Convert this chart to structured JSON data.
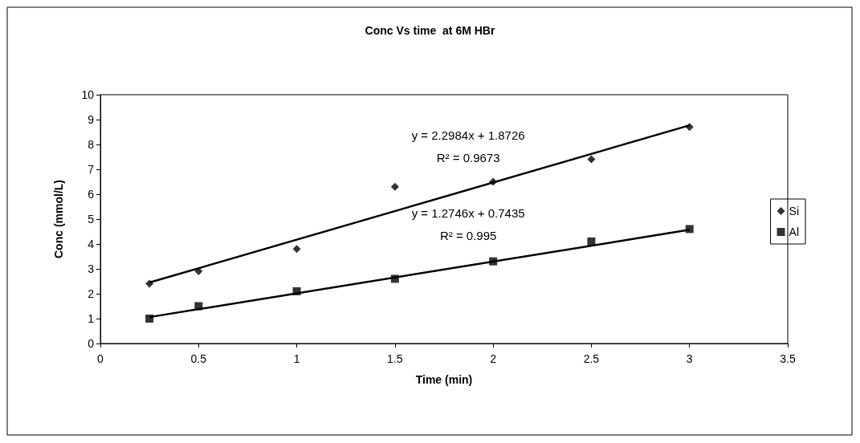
{
  "chart_data": {
    "type": "scatter",
    "title": "Conc Vs time  at 6M HBr",
    "xlabel": "Time (min)",
    "ylabel": "Conc (mmol/L)",
    "xlim": [
      0,
      3.5
    ],
    "xticks": [
      0,
      0.5,
      1,
      1.5,
      2,
      2.5,
      3,
      3.5
    ],
    "ylim": [
      0,
      10
    ],
    "yticks": [
      0,
      1,
      2,
      3,
      4,
      5,
      6,
      7,
      8,
      9,
      10
    ],
    "grid": false,
    "legend": "right",
    "series": [
      {
        "name": "Si",
        "color": "#000000",
        "marker": "diamond",
        "x": [
          0.25,
          0.5,
          1,
          1.5,
          2,
          2.5,
          3
        ],
        "values": [
          2.4,
          2.9,
          3.8,
          6.3,
          6.5,
          7.4,
          8.7
        ]
      },
      {
        "name": "Al",
        "color": "#000000",
        "marker": "square",
        "x": [
          0.25,
          0.5,
          1,
          1.5,
          2,
          2.5,
          3
        ],
        "values": [
          1.0,
          1.5,
          2.1,
          2.6,
          3.3,
          4.1,
          4.6
        ]
      },
      {
        "type": "line",
        "color": "#000000",
        "marker": "none",
        "line_style": "solid",
        "x": [
          0.25,
          3
        ],
        "values": [
          2.45,
          8.77
        ]
      },
      {
        "type": "line",
        "color": "#000000",
        "marker": "none",
        "line_style": "solid",
        "x": [
          0.25,
          3
        ],
        "values": [
          1.06,
          4.57
        ]
      }
    ],
    "annotations": [
      "y = 2.2984x + 1.8726",
      "R² = 0.9673",
      "y = 1.2746x + 0.7435",
      "R² = 0.995"
    ]
  }
}
